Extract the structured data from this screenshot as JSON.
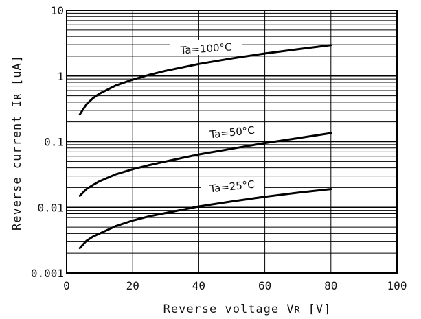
{
  "chart_data": {
    "type": "line",
    "xlabel": "Reverse voltage V",
    "xlabel_sub": "R",
    "xlabel_unit": " [V]",
    "ylabel": "Reverse current I",
    "ylabel_sub": "R",
    "ylabel_unit": " [uA]",
    "xlim": [
      0,
      100
    ],
    "ylim": [
      0.001,
      10
    ],
    "yscale": "log",
    "xticks": [
      0,
      20,
      40,
      60,
      80,
      100
    ],
    "xtick_labels": [
      "0",
      "20",
      "40",
      "60",
      "80",
      "100"
    ],
    "yticks": [
      0.001,
      0.01,
      0.1,
      1,
      10
    ],
    "ytick_labels": [
      "0.001",
      "0.01",
      "0.1",
      "1",
      "10"
    ],
    "grid": true,
    "series": [
      {
        "name": "Ta=100°C",
        "x": [
          4,
          6,
          8,
          10,
          15,
          20,
          25,
          30,
          40,
          50,
          60,
          70,
          80
        ],
        "y": [
          0.26,
          0.37,
          0.46,
          0.54,
          0.72,
          0.88,
          1.04,
          1.2,
          1.52,
          1.85,
          2.2,
          2.55,
          2.95
        ]
      },
      {
        "name": "Ta=50°C",
        "x": [
          4,
          6,
          8,
          10,
          15,
          20,
          25,
          30,
          40,
          50,
          60,
          70,
          80
        ],
        "y": [
          0.015,
          0.019,
          0.022,
          0.025,
          0.032,
          0.038,
          0.044,
          0.05,
          0.064,
          0.078,
          0.095,
          0.113,
          0.135
        ]
      },
      {
        "name": "Ta=25°C",
        "x": [
          4,
          6,
          8,
          10,
          15,
          20,
          25,
          30,
          40,
          50,
          60,
          70,
          80
        ],
        "y": [
          0.0024,
          0.0031,
          0.0036,
          0.004,
          0.0052,
          0.0063,
          0.0073,
          0.0082,
          0.0103,
          0.0123,
          0.0145,
          0.0167,
          0.019
        ]
      }
    ]
  }
}
